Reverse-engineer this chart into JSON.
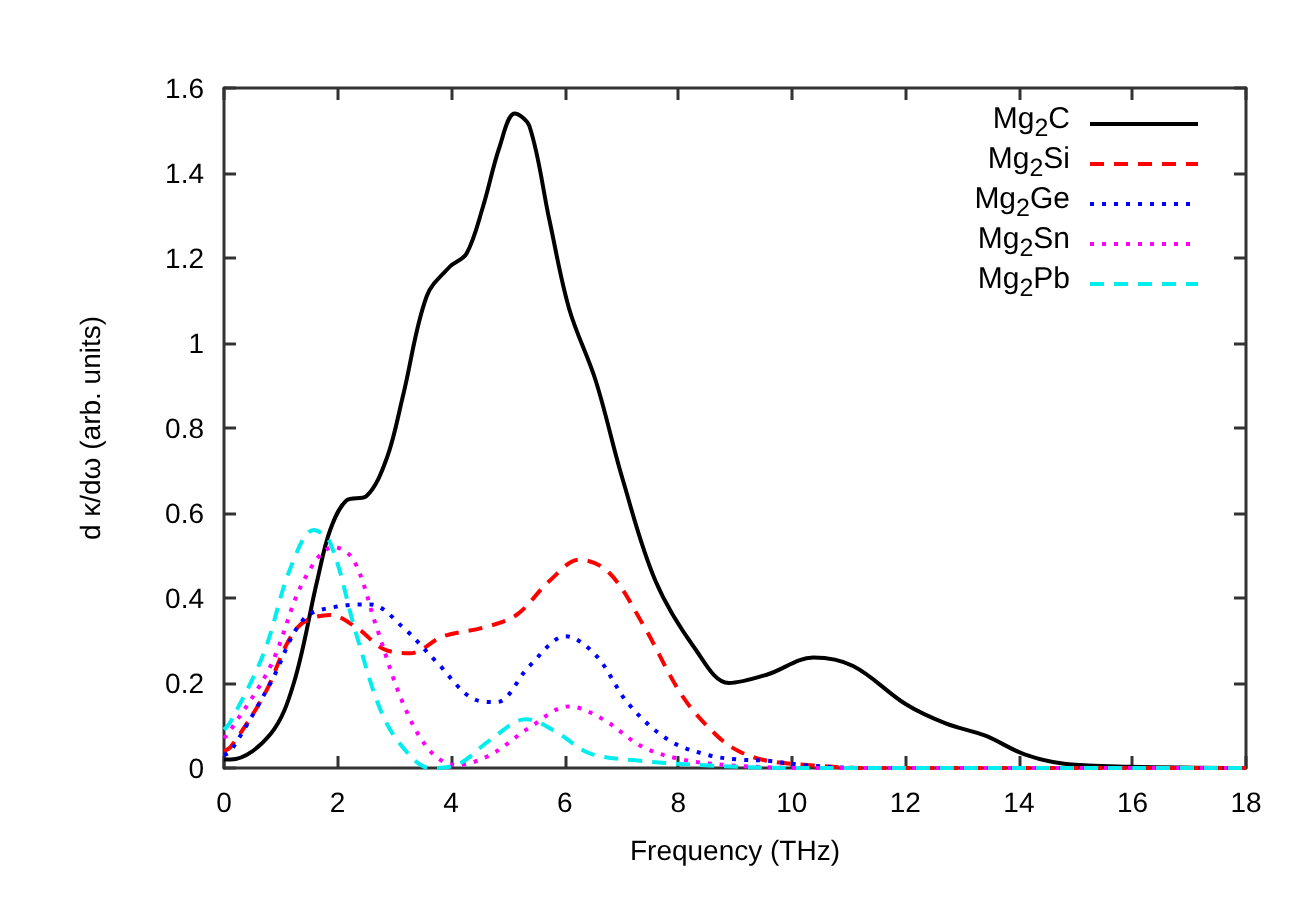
{
  "chart_data": {
    "type": "line",
    "xlabel": "Frequency (THz)",
    "ylabel": "d κ/dω (arb. units)",
    "xlim": [
      0,
      18
    ],
    "xticks": [
      0,
      2,
      4,
      6,
      8,
      10,
      12,
      14,
      16,
      18
    ],
    "ylim": [
      0,
      1.6
    ],
    "yticks": [
      0,
      0.2,
      0.4,
      0.6,
      0.8,
      1,
      1.2,
      1.4,
      1.6
    ],
    "grid": false,
    "legend": "top right",
    "marker": "none",
    "series": [
      {
        "name": "Mg$_{2}$C",
        "color": "#000000",
        "line_style": "solid",
        "x": [
          0,
          0.12,
          0.82,
          1.23,
          1.64,
          1.87,
          2.16,
          2.51,
          2.87,
          3.16,
          3.57,
          3.98,
          4.27,
          4.56,
          4.85,
          5.12,
          5.38,
          5.73,
          6.08,
          6.55,
          7.02,
          7.6,
          8.3,
          8.89,
          9.57,
          10.38,
          11.08,
          12.01,
          12.71,
          13.41,
          14.1,
          14.8,
          15.97,
          18
        ],
        "values": [
          0.02,
          0.02,
          0.08,
          0.2,
          0.44,
          0.56,
          0.63,
          0.64,
          0.73,
          0.88,
          1.11,
          1.18,
          1.21,
          1.32,
          1.46,
          1.54,
          1.51,
          1.29,
          1.08,
          0.91,
          0.68,
          0.44,
          0.28,
          0.2,
          0.22,
          0.26,
          0.24,
          0.15,
          0.105,
          0.076,
          0.032,
          0.01,
          0.003,
          0
        ]
      },
      {
        "name": "Mg$_{2}$Si",
        "color": "#ff0000",
        "line_style": "dashed",
        "x": [
          0,
          0.12,
          0.7,
          1.29,
          1.87,
          2.34,
          2.81,
          3.27,
          3.86,
          4.56,
          5.15,
          5.73,
          6.26,
          6.78,
          7.37,
          8.07,
          8.65,
          9.06,
          9.57,
          10.38,
          11.3,
          18
        ],
        "values": [
          0.04,
          0.05,
          0.17,
          0.33,
          0.36,
          0.33,
          0.28,
          0.27,
          0.31,
          0.33,
          0.36,
          0.44,
          0.49,
          0.46,
          0.34,
          0.17,
          0.08,
          0.04,
          0.017,
          0.006,
          0,
          0
        ]
      },
      {
        "name": "Mg$_{2}$Ge",
        "color": "#0000ff",
        "line_style": "dotted",
        "x": [
          0,
          0.12,
          0.82,
          1.4,
          1.99,
          2.57,
          3.16,
          3.74,
          4.44,
          4.8,
          5.38,
          6.02,
          6.55,
          7.13,
          7.84,
          8.54,
          9.06,
          9.57,
          10.27,
          11.3,
          18
        ],
        "values": [
          0.03,
          0.04,
          0.2,
          0.35,
          0.38,
          0.385,
          0.33,
          0.25,
          0.16,
          0.155,
          0.24,
          0.31,
          0.265,
          0.15,
          0.065,
          0.03,
          0.02,
          0.017,
          0.006,
          0,
          0
        ]
      },
      {
        "name": "Mg$_{2}$Sn",
        "color": "#ff00ff",
        "line_style": "dotted",
        "x": [
          0,
          0.12,
          0.82,
          1.4,
          1.93,
          2.28,
          2.69,
          3.16,
          3.63,
          4.09,
          4.68,
          5.38,
          6.08,
          6.67,
          7.37,
          8.07,
          9.06,
          10.5,
          18
        ],
        "values": [
          0.07,
          0.09,
          0.24,
          0.44,
          0.52,
          0.49,
          0.33,
          0.15,
          0.04,
          0.007,
          0.03,
          0.095,
          0.145,
          0.115,
          0.05,
          0.02,
          0.005,
          0,
          0
        ]
      },
      {
        "name": "Mg$_{2}$Pb",
        "color": "#00eeee",
        "line_style": "dashed",
        "x": [
          0,
          0.12,
          0.7,
          1.17,
          1.58,
          1.87,
          2.34,
          2.81,
          3.27,
          3.63,
          4.09,
          4.68,
          5.32,
          5.85,
          6.43,
          7.25,
          8.54,
          10,
          18
        ],
        "values": [
          0.09,
          0.11,
          0.27,
          0.47,
          0.56,
          0.53,
          0.31,
          0.12,
          0.03,
          0,
          0.007,
          0.065,
          0.115,
          0.085,
          0.035,
          0.018,
          0.006,
          0,
          0
        ]
      }
    ]
  }
}
